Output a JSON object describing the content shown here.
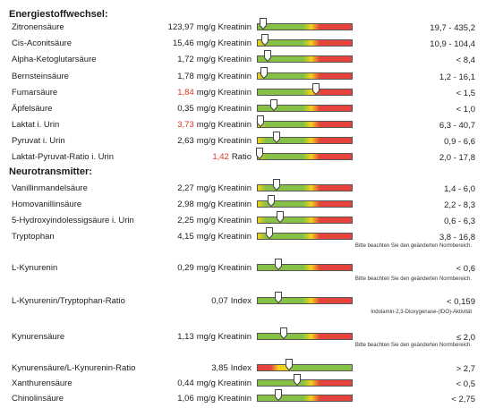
{
  "sections": {
    "energy": "Energiestoffwechsel:",
    "neuro": "Neurotransmitter:"
  },
  "rows": [
    {
      "label": "Zitronensäure",
      "value": "123,97",
      "unit": "mg/g Kreatinin",
      "ref": "19,7 - 435,2",
      "scheme": "normal_high",
      "pos": 0.06,
      "flag": false
    },
    {
      "label": "Cis-Aconitsäure",
      "value": "15,46",
      "unit": "mg/g Kreatinin",
      "ref": "10,9 - 104,4",
      "scheme": "low_normal_high",
      "pos": 0.08,
      "flag": false
    },
    {
      "label": "Alpha-Ketoglutarsäure",
      "value": "1,72",
      "unit": "mg/g Kreatinin",
      "ref": "< 8,4",
      "scheme": "normal_high",
      "pos": 0.1,
      "flag": false
    },
    {
      "label": "Bernsteinsäure",
      "value": "1,78",
      "unit": "mg/g Kreatinin",
      "ref": "1,2 - 16,1",
      "scheme": "low_normal_high",
      "pos": 0.07,
      "flag": false
    },
    {
      "label": "Fumarsäure",
      "value": "1,84",
      "unit": "mg/g Kreatinin",
      "ref": "< 1,5",
      "scheme": "normal_high",
      "pos": 0.62,
      "flag": true
    },
    {
      "label": "Äpfelsäure",
      "value": "0,35",
      "unit": "mg/g Kreatinin",
      "ref": "< 1,0",
      "scheme": "normal_high",
      "pos": 0.17,
      "flag": false
    },
    {
      "label": "Laktat i. Urin",
      "value": "3,73",
      "unit": "mg/g Kreatinin",
      "ref": "6,3 - 40,7",
      "scheme": "low_normal_high",
      "pos": 0.03,
      "flag": true
    },
    {
      "label": "Pyruvat i. Urin",
      "value": "2,63",
      "unit": "mg/g Kreatinin",
      "ref": "0,9 - 6,6",
      "scheme": "low_normal_high",
      "pos": 0.2,
      "flag": false
    },
    {
      "label": "Laktat-Pyruvat-Ratio i. Urin",
      "value": "1,42",
      "unit": "Ratio",
      "ref": "2,0 - 17,8",
      "scheme": "low_normal_high",
      "pos": 0.02,
      "flag": true
    },
    {
      "label": "Vanillinmandelsäure",
      "value": "2,27",
      "unit": "mg/g Kreatinin",
      "ref": "1,4 - 6,0",
      "scheme": "low_normal_high",
      "pos": 0.2,
      "flag": false
    },
    {
      "label": "Homovanillinsäure",
      "value": "2,98",
      "unit": "mg/g Kreatinin",
      "ref": "2,2 - 8,3",
      "scheme": "low_normal_high",
      "pos": 0.14,
      "flag": false
    },
    {
      "label": "5-Hydroxyindolessigsäure i. Urin",
      "value": "2,25",
      "unit": "mg/g Kreatinin",
      "ref": "0,6 - 6,3",
      "scheme": "low_normal_high",
      "pos": 0.24,
      "flag": false
    },
    {
      "label": "Tryptophan",
      "value": "4,15",
      "unit": "mg/g Kreatinin",
      "ref": "3,8 - 16,8",
      "scheme": "low_normal_high",
      "pos": 0.12,
      "flag": false
    },
    {
      "label": "L-Kynurenin",
      "value": "0,29",
      "unit": "mg/g Kreatinin",
      "ref": "< 0,6",
      "scheme": "normal_high",
      "pos": 0.22,
      "flag": false
    },
    {
      "label": "L-Kynurenin/Tryptophan-Ratio",
      "value": "0,07",
      "unit": "Index",
      "ref": "< 0,159",
      "scheme": "normal_high",
      "pos": 0.22,
      "flag": false
    },
    {
      "label": "Kynurensäure",
      "value": "1,13",
      "unit": "mg/g Kreatinin",
      "ref": "≤ 2,0",
      "scheme": "normal_high",
      "pos": 0.28,
      "flag": false
    },
    {
      "label": "Kynurensäure/L-Kynurenin-Ratio",
      "value": "3,85",
      "unit": "Index",
      "ref": "> 2,7",
      "scheme": "red_yellow_green",
      "pos": 0.33,
      "flag": false
    },
    {
      "label": "Xanthurensäure",
      "value": "0,44",
      "unit": "mg/g Kreatinin",
      "ref": "< 0,5",
      "scheme": "normal_high",
      "pos": 0.42,
      "flag": false
    },
    {
      "label": "Chinolinsäure",
      "value": "1,06",
      "unit": "mg/g Kreatinin",
      "ref": "< 2,75",
      "scheme": "normal_high",
      "pos": 0.22,
      "flag": false
    }
  ],
  "notes": {
    "n1": "Bitte beachten Sie den geänderten Normbereich.",
    "n2": "Bitte beachten Sie den geänderten Normbereich.",
    "n3": "Indolamin-2,3-Dioxygenase-(IDO)-Aktivität",
    "n4": "Bitte beachten Sie den geänderten Normbereich."
  },
  "colors": {
    "green": "#86c044",
    "yellow": "#f2d21b",
    "red": "#e5433c",
    "value_flag": "#e0351f"
  }
}
